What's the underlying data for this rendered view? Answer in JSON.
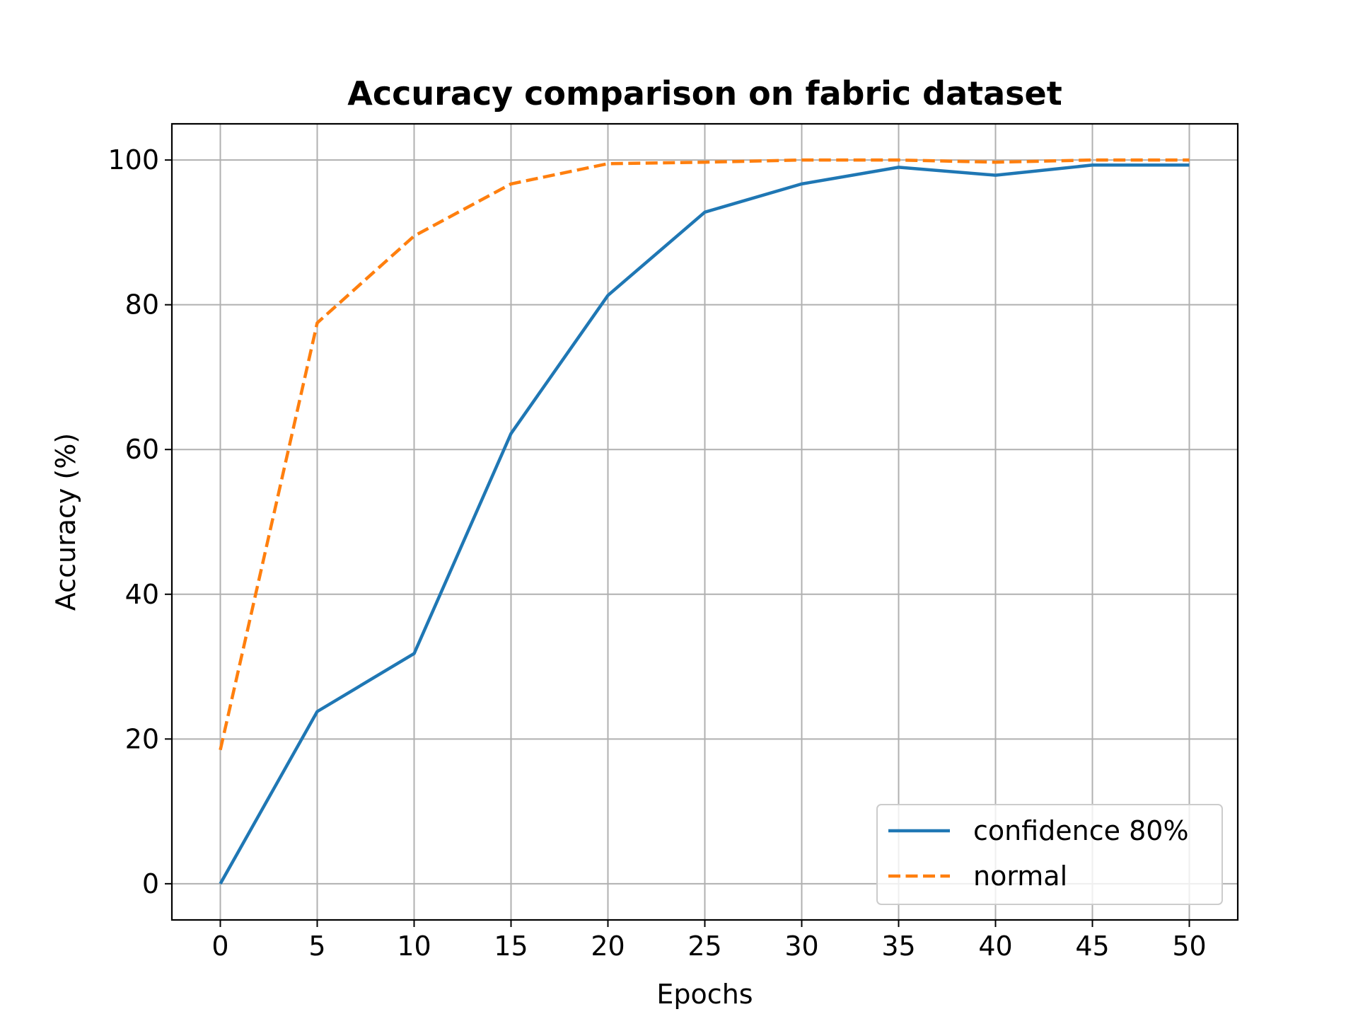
{
  "chart_data": {
    "type": "line",
    "title": "Accuracy comparison on fabric dataset",
    "xlabel": "Epochs",
    "ylabel": "Accuracy (%)",
    "xlim": [
      -2.5,
      52.5
    ],
    "ylim": [
      -5,
      105
    ],
    "xticks": [
      0,
      5,
      10,
      15,
      20,
      25,
      30,
      35,
      40,
      45,
      50
    ],
    "xtick_labels": [
      "0",
      "5",
      "10",
      "15",
      "20",
      "25",
      "30",
      "35",
      "40",
      "45",
      "50"
    ],
    "yticks": [
      0,
      20,
      40,
      60,
      80,
      100
    ],
    "ytick_labels": [
      "0",
      "20",
      "40",
      "60",
      "80",
      "100"
    ],
    "grid": true,
    "legend_position": "lower-right",
    "x": [
      0,
      5,
      10,
      15,
      20,
      25,
      30,
      35,
      40,
      45,
      50
    ],
    "series": [
      {
        "name": "confidence 80%",
        "color": "#1f77b4",
        "line_style": "solid",
        "values": [
          0,
          23.8,
          31.8,
          62.2,
          81.3,
          92.8,
          96.7,
          99.0,
          97.9,
          99.3,
          99.3
        ]
      },
      {
        "name": "normal",
        "color": "#ff7f0e",
        "line_style": "dashed",
        "values": [
          18.5,
          77.5,
          89.5,
          96.7,
          99.5,
          99.7,
          100.0,
          100.0,
          99.7,
          100.0,
          100.0
        ]
      }
    ]
  }
}
